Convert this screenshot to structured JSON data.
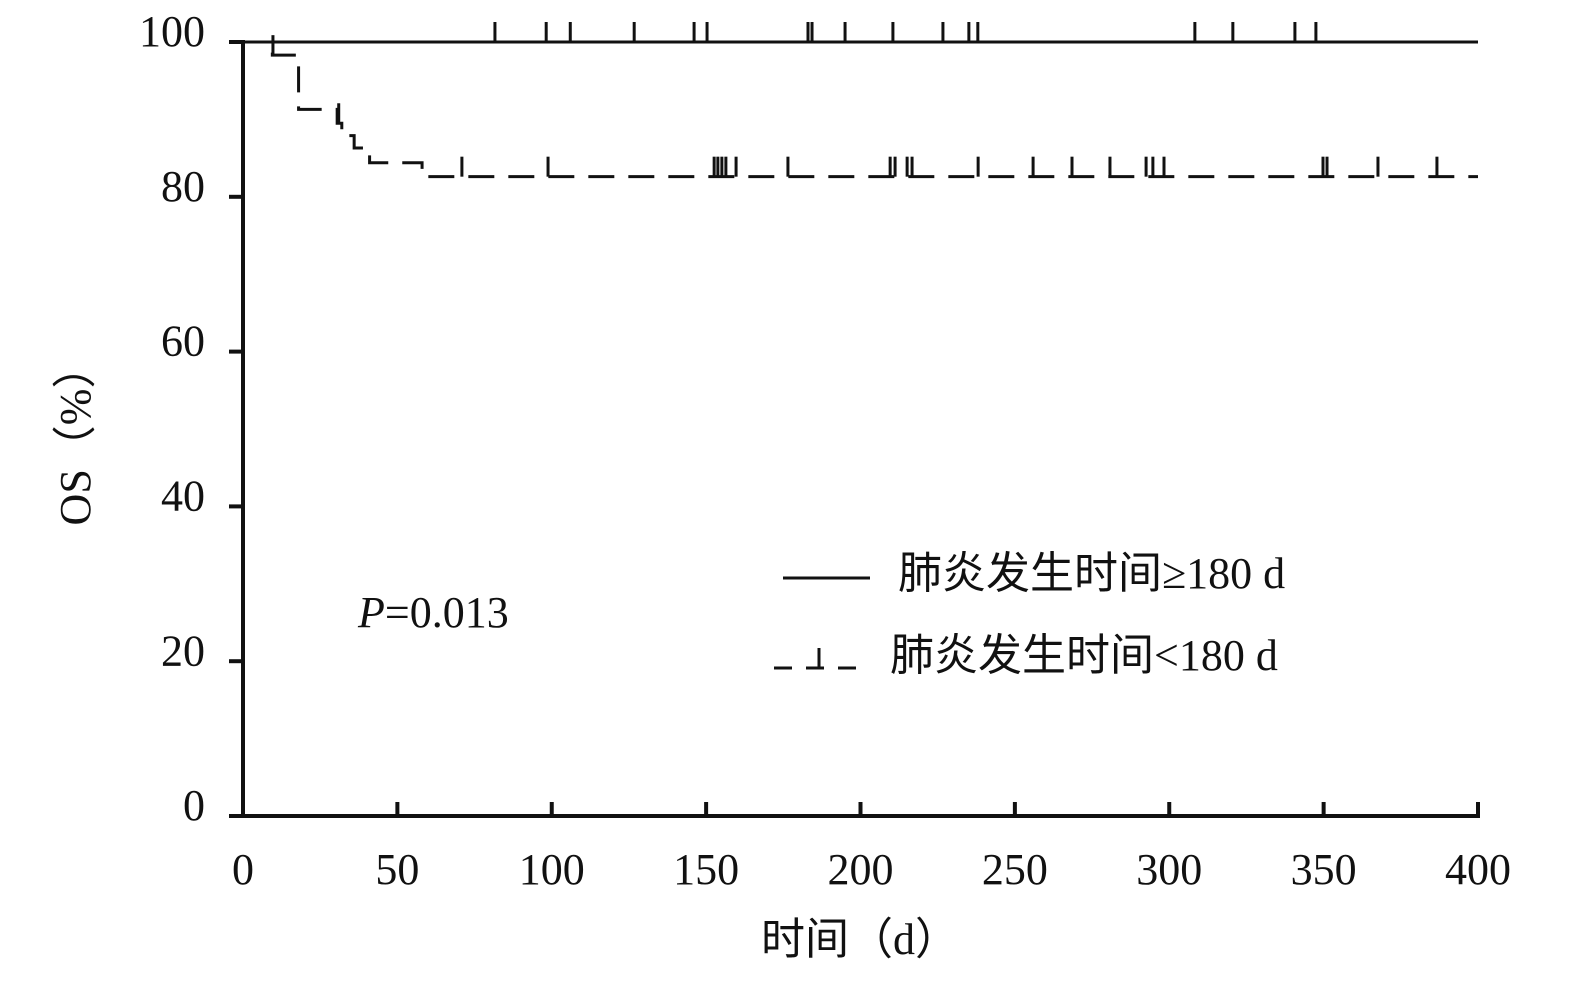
{
  "chart_data": {
    "type": "km",
    "xlabel": "时间（d）",
    "ylabel": "OS（%）",
    "annotation": {
      "italic": "P",
      "text": "=0.013"
    },
    "xlim": [
      0,
      400
    ],
    "xticks": [
      0,
      50,
      100,
      150,
      200,
      250,
      300,
      350,
      400
    ],
    "ylim": [
      0,
      100
    ],
    "yticks": [
      0,
      20,
      40,
      60,
      80,
      100
    ],
    "series": [
      {
        "name": "肺炎发生时间≥180 d",
        "color": "#111111",
        "dashed": false,
        "x": [
          0
        ],
        "values": [
          100
        ],
        "censored": [
          81.6,
          98.2,
          106,
          126.7,
          146.1,
          150.3,
          183,
          184.3,
          195,
          210.5,
          226.7,
          235.1,
          238,
          308.3,
          320.6,
          340.7,
          347.5
        ]
      },
      {
        "name": "肺炎发生时间<180 d",
        "color": "#111111",
        "dashed": true,
        "x": [
          0,
          9.5,
          18,
          30.5,
          32,
          36,
          41,
          58
        ],
        "values": [
          100,
          98.3,
          91.3,
          89.5,
          87.9,
          86.3,
          84.4,
          82.6
        ],
        "censored": [
          9.7,
          31,
          70.9,
          98.8,
          152.6,
          153.8,
          155.1,
          156.4,
          159.7,
          176.5,
          209.6,
          211.2,
          215.1,
          216.7,
          238.1,
          255.9,
          268.5,
          280.8,
          292.5,
          294.7,
          298.3,
          349.8,
          351.1,
          367.6,
          386.7
        ]
      }
    ]
  }
}
